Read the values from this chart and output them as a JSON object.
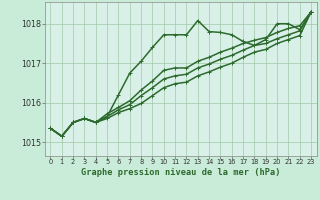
{
  "background_color": "#c8ecd8",
  "plot_bg_color": "#d8f0e8",
  "grid_color": "#a0c8a8",
  "line_color": "#2d6a2d",
  "title": "Graphe pression niveau de la mer (hPa)",
  "xlim": [
    -0.5,
    23.5
  ],
  "ylim": [
    1014.65,
    1018.55
  ],
  "yticks": [
    1015,
    1016,
    1017,
    1018
  ],
  "xticks": [
    0,
    1,
    2,
    3,
    4,
    5,
    6,
    7,
    8,
    9,
    10,
    11,
    12,
    13,
    14,
    15,
    16,
    17,
    18,
    19,
    20,
    21,
    22,
    23
  ],
  "series": [
    [
      1015.35,
      1015.15,
      1015.5,
      1015.6,
      1015.5,
      1015.65,
      1016.2,
      1016.75,
      1017.05,
      1017.4,
      1017.72,
      1017.72,
      1017.72,
      1018.08,
      1017.8,
      1017.78,
      1017.72,
      1017.55,
      1017.45,
      1017.6,
      1018.0,
      1018.0,
      1017.85,
      1018.3
    ],
    [
      1015.35,
      1015.15,
      1015.5,
      1015.6,
      1015.5,
      1015.72,
      1015.88,
      1016.05,
      1016.32,
      1016.55,
      1016.82,
      1016.88,
      1016.88,
      1017.05,
      1017.15,
      1017.28,
      1017.38,
      1017.5,
      1017.58,
      1017.65,
      1017.78,
      1017.88,
      1017.95,
      1018.3
    ],
    [
      1015.35,
      1015.15,
      1015.5,
      1015.6,
      1015.5,
      1015.65,
      1015.82,
      1015.95,
      1016.18,
      1016.38,
      1016.6,
      1016.68,
      1016.72,
      1016.88,
      1016.98,
      1017.1,
      1017.2,
      1017.33,
      1017.45,
      1017.5,
      1017.62,
      1017.72,
      1017.82,
      1018.3
    ],
    [
      1015.35,
      1015.15,
      1015.5,
      1015.6,
      1015.5,
      1015.6,
      1015.75,
      1015.85,
      1015.98,
      1016.18,
      1016.38,
      1016.48,
      1016.52,
      1016.68,
      1016.78,
      1016.9,
      1017.0,
      1017.15,
      1017.28,
      1017.35,
      1017.5,
      1017.6,
      1017.7,
      1018.3
    ]
  ]
}
